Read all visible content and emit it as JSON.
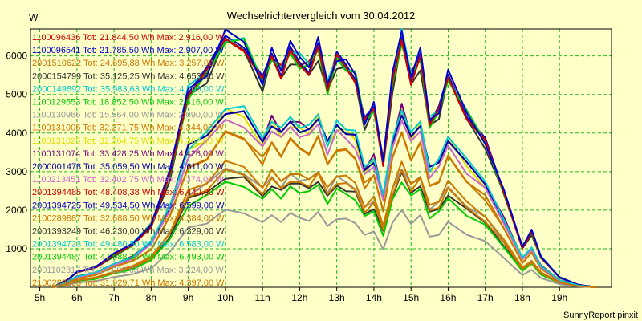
{
  "chart_data": {
    "type": "line",
    "title": "Wechselrichtervergleich vom 30.04.2012",
    "ylabel": "W",
    "xlabel": "",
    "credit": "SunnyReport pinxit",
    "ylim": [
      0,
      6700
    ],
    "xlim": [
      4.75,
      20.4
    ],
    "y_ticks": [
      1000,
      2000,
      3000,
      4000,
      5000,
      6000
    ],
    "x_ticks": [
      {
        "v": 5,
        "label": "5h"
      },
      {
        "v": 6,
        "label": "6h"
      },
      {
        "v": 7,
        "label": "7h"
      },
      {
        "v": 8,
        "label": "8h"
      },
      {
        "v": 9,
        "label": "9h"
      },
      {
        "v": 10,
        "label": "10h"
      },
      {
        "v": 11,
        "label": "11h"
      },
      {
        "v": 12,
        "label": "12h"
      },
      {
        "v": 13,
        "label": "13h"
      },
      {
        "v": 14,
        "label": "14h"
      },
      {
        "v": 15,
        "label": "15h"
      },
      {
        "v": 16,
        "label": "16h"
      },
      {
        "v": 17,
        "label": "17h"
      },
      {
        "v": 18,
        "label": "18h"
      },
      {
        "v": 19,
        "label": "19h"
      }
    ],
    "grid": true,
    "legend_position": "top-left",
    "colors": {
      "background": "#ffffc8",
      "grid": "#22bb22",
      "axis": "#000000"
    },
    "x": [
      5.35,
      5.75,
      6.0,
      6.5,
      7.0,
      7.5,
      8.0,
      8.5,
      9.0,
      9.5,
      10.0,
      10.5,
      11.0,
      11.25,
      11.5,
      11.75,
      12.0,
      12.25,
      12.5,
      12.75,
      13.0,
      13.25,
      13.5,
      13.75,
      14.0,
      14.25,
      14.5,
      14.75,
      15.0,
      15.25,
      15.5,
      15.75,
      16.0,
      16.5,
      17.0,
      17.5,
      18.0,
      18.25,
      18.5,
      19.0,
      19.5,
      20.0
    ],
    "series": [
      {
        "name": "1100096436 Tot: 21.844,50 Wh Max: 2.916,00 W",
        "color": "#cc0000",
        "peak": 6500,
        "scale": 1.0
      },
      {
        "name": "1100096541 Tot: 21.785,50 Wh Max: 2.907,00 W",
        "color": "#0000cc",
        "peak": 6520,
        "scale": 1.0
      },
      {
        "name": "2001510622 Tot: 24.695,88 Wh Max: 3.257,00 W",
        "color": "#cc7700",
        "peak": 4000,
        "scale": 0.62
      },
      {
        "name": "2000154799 Tot: 35.125,25 Wh Max: 4.653,00 W",
        "color": "#333333",
        "peak": 6300,
        "scale": 0.97
      },
      {
        "name": "2000149892 Tot: 35.983,63 Wh Max: 4.706,00 W",
        "color": "#00cccc",
        "peak": 6550,
        "scale": 1.0
      },
      {
        "name": "1100129553 Tot: 18.852,50 Wh Max: 2.816,00 W",
        "color": "#00cc00",
        "peak": 6450,
        "scale": 0.99
      },
      {
        "name": "1100130966 Tot: 15.564,00 Wh Max: 2.090,00 W",
        "color": "#999999",
        "peak": 3100,
        "scale": 0.48
      },
      {
        "name": "1100131006 Tot: 32.271,75 Wh Max: 4.344,00 W",
        "color": "#cc7700",
        "peak": 4000,
        "scale": 0.62
      },
      {
        "name": "1100131025 Tot: 32.364,75 Wh Max: 4.362,00 W",
        "color": "#dddd00",
        "peak": 4550,
        "scale": 0.7
      },
      {
        "name": "1100131074 Tot: 33.428,25 Wh Max: 4.426,00 W",
        "color": "#770077",
        "peak": 4650,
        "scale": 0.72
      },
      {
        "name": "2000001478 Tot: 35.059,50 Wh Max: 4.611,00 W",
        "color": "#0000aa",
        "peak": 4600,
        "scale": 0.71
      },
      {
        "name": "1100213451 Tot: 32.402,75 Wh Max: 4.374,00 W",
        "color": "#cc66cc",
        "peak": 4400,
        "scale": 0.68
      },
      {
        "name": "2001394485 Tot: 48.408,38 Wh Max: 6.440,00 W",
        "color": "#cc0000",
        "peak": 6440,
        "scale": 0.99
      },
      {
        "name": "2001394725 Tot: 49.534,50 Wh Max: 6.599,00 W",
        "color": "#0000cc",
        "peak": 6599,
        "scale": 1.0
      },
      {
        "name": "2100289887 Tot: 32.688,50 Wh Max: 4.384,00 W",
        "color": "#cc7700",
        "peak": 3200,
        "scale": 0.5
      },
      {
        "name": "2001393249 Tot: 46.230,00 Wh Max: 6.329,00 W",
        "color": "#333333",
        "peak": 2900,
        "scale": 0.45
      },
      {
        "name": "2001394723 Tot: 49.480,50 Wh Max: 6.583,00 W",
        "color": "#00cccc",
        "peak": 4700,
        "scale": 0.72
      },
      {
        "name": "2001394487 Tot: 47.988,38 Wh Max: 6.493,00 W",
        "color": "#00cc00",
        "peak": 2750,
        "scale": 0.42
      },
      {
        "name": "2001102317 Tot: 24.092,63 Wh Max: 3.224,00 W",
        "color": "#999999",
        "peak": 2000,
        "scale": 0.3
      },
      {
        "name": "2100289893 Tot: 31.929,71 Wh Max: 4.397,00 W",
        "color": "#cc7700",
        "peak": 3000,
        "scale": 0.47
      }
    ],
    "profile": [
      0.0,
      0.03,
      0.06,
      0.08,
      0.13,
      0.17,
      0.25,
      0.45,
      0.78,
      0.85,
      0.995,
      0.97,
      0.82,
      0.93,
      0.86,
      0.94,
      0.9,
      0.88,
      0.96,
      0.8,
      0.91,
      0.88,
      0.84,
      0.66,
      0.72,
      0.5,
      0.82,
      1.0,
      0.84,
      0.92,
      0.66,
      0.7,
      0.84,
      0.69,
      0.58,
      0.38,
      0.16,
      0.22,
      0.12,
      0.04,
      0.01,
      0.0
    ]
  }
}
